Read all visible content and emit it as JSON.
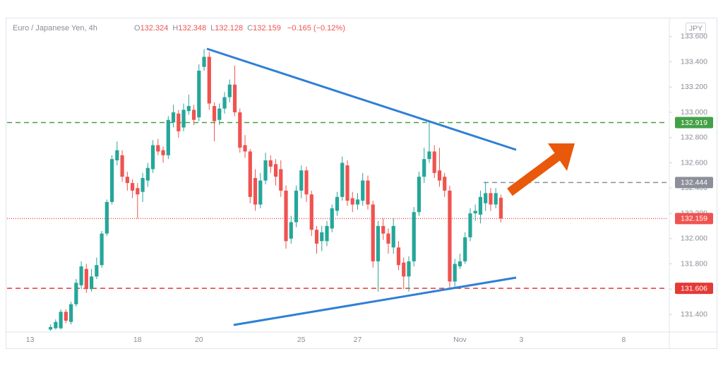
{
  "chart_data": {
    "type": "candlestick",
    "title": "Euro / Japanese Yen, 4h",
    "ohlc_labels": [
      "O",
      "H",
      "L",
      "C"
    ],
    "change": "−0.165 (−0.12%)",
    "currency": "JPY",
    "up_color": "#26a69a",
    "down_color": "#ef5350",
    "grid": false,
    "categories": [
      null,
      null,
      null,
      null,
      "13",
      null,
      null,
      null,
      null,
      null,
      null,
      null,
      null,
      null,
      null,
      null,
      null,
      null,
      null,
      null,
      null,
      null,
      null,
      null,
      null,
      "18",
      null,
      null,
      null,
      null,
      null,
      null,
      null,
      null,
      null,
      null,
      null,
      "20",
      null,
      null,
      null,
      null,
      null,
      null,
      null,
      null,
      null,
      null,
      null,
      null,
      null,
      null,
      null,
      null,
      null,
      null,
      null,
      "25",
      null,
      null,
      null,
      null,
      null,
      null,
      null,
      null,
      null,
      null,
      "27",
      null,
      null,
      null,
      null,
      null,
      null,
      null,
      null,
      null,
      null,
      null,
      null,
      null,
      null,
      null,
      null,
      null,
      null,
      null,
      "Nov",
      null,
      null,
      null,
      null,
      null,
      null,
      null,
      null,
      null,
      null,
      null,
      "3",
      null,
      null,
      null,
      null,
      null,
      null,
      null,
      null,
      null,
      null,
      null,
      null,
      null,
      null,
      null,
      null,
      null,
      null,
      null,
      "8",
      null,
      null,
      null,
      null,
      null,
      null,
      null,
      null
    ],
    "open": [
      null,
      null,
      null,
      null,
      null,
      null,
      null,
      null,
      131.28,
      131.29,
      131.29,
      131.42,
      131.34,
      131.48,
      131.63,
      131.76,
      131.6,
      131.7,
      131.79,
      132.04,
      132.29,
      132.62,
      132.66,
      132.49,
      132.44,
      132.4,
      132.37,
      132.46,
      132.55,
      132.74,
      132.7,
      132.66,
      132.92,
      132.99,
      132.88,
      133.01,
      133.02,
      132.96,
      133.36,
      133.44,
      133.05,
      132.94,
      133.03,
      133.12,
      133.22,
      133.0,
      132.74,
      132.69,
      132.48,
      132.27,
      132.46,
      132.62,
      132.59,
      132.55,
      132.38,
      132.0,
      132.13,
      132.38,
      132.54,
      132.35,
      132.07,
      131.98,
      131.98,
      132.08,
      132.22,
      132.33,
      132.58,
      132.32,
      132.27,
      132.3,
      132.46,
      132.27,
      131.82,
      132.1,
      132.04,
      131.93,
      131.93,
      131.81,
      131.7,
      131.82,
      132.21,
      132.49,
      132.63,
      132.69,
      132.54,
      132.49,
      132.38,
      131.66,
      131.78,
      131.82,
      132.01,
      132.2,
      132.19,
      132.28,
      132.36,
      132.27,
      132.324,
      null,
      null,
      null,
      null,
      null,
      null,
      null,
      null,
      null,
      null,
      null,
      null,
      null,
      null,
      null,
      null,
      null,
      null,
      null,
      null,
      null,
      null,
      null,
      null,
      null,
      null,
      null,
      null,
      null,
      null,
      null,
      null
    ],
    "high": [
      null,
      null,
      null,
      null,
      null,
      null,
      null,
      null,
      131.32,
      131.36,
      131.44,
      131.44,
      131.5,
      131.68,
      131.82,
      131.8,
      131.76,
      131.85,
      132.06,
      132.31,
      132.66,
      132.77,
      132.7,
      132.53,
      132.47,
      132.44,
      132.52,
      132.6,
      132.78,
      132.79,
      132.73,
      132.97,
      133.06,
      133.02,
      133.07,
      133.14,
      133.06,
      133.38,
      133.5,
      133.48,
      133.08,
      133.07,
      133.16,
      133.26,
      133.37,
      133.03,
      132.82,
      132.71,
      132.55,
      132.52,
      132.68,
      132.66,
      132.63,
      132.62,
      132.42,
      132.18,
      132.42,
      132.58,
      132.57,
      132.38,
      132.1,
      132.1,
      132.14,
      132.27,
      132.37,
      132.65,
      132.62,
      132.37,
      132.36,
      132.52,
      132.5,
      132.3,
      132.14,
      132.16,
      132.08,
      132.16,
      131.98,
      131.85,
      131.86,
      132.25,
      132.53,
      132.72,
      132.93,
      132.74,
      132.72,
      132.52,
      132.42,
      131.84,
      131.88,
      132.05,
      132.24,
      132.27,
      132.38,
      132.45,
      132.4,
      132.4,
      132.348,
      null,
      null,
      null,
      null,
      null,
      null,
      null,
      null,
      null,
      null,
      null,
      null,
      null,
      null,
      null,
      null,
      null,
      null,
      null,
      null,
      null,
      null,
      null,
      null,
      null,
      null,
      null,
      null,
      null,
      null,
      null,
      null
    ],
    "low": [
      null,
      null,
      null,
      null,
      null,
      null,
      null,
      null,
      131.27,
      131.28,
      131.28,
      131.33,
      131.32,
      131.46,
      131.6,
      131.57,
      131.58,
      131.68,
      131.77,
      132.02,
      132.27,
      132.58,
      132.45,
      132.38,
      132.32,
      132.16,
      132.29,
      132.41,
      132.52,
      132.66,
      132.6,
      132.63,
      132.88,
      132.8,
      132.85,
      132.98,
      132.9,
      132.93,
      133.33,
      133.02,
      132.77,
      132.9,
      132.99,
      133.08,
      132.97,
      132.68,
      132.64,
      132.28,
      132.22,
      132.24,
      132.43,
      132.52,
      132.42,
      132.33,
      131.92,
      131.96,
      132.09,
      132.32,
      132.29,
      132.02,
      131.88,
      131.9,
      131.94,
      132.05,
      132.18,
      132.3,
      132.26,
      132.21,
      132.23,
      132.26,
      132.23,
      131.77,
      131.58,
      131.99,
      131.88,
      131.88,
      131.75,
      131.6,
      131.58,
      131.78,
      132.18,
      132.44,
      132.6,
      132.48,
      132.41,
      132.33,
      131.61,
      131.62,
      131.76,
      131.8,
      131.98,
      132.14,
      132.12,
      132.22,
      132.22,
      132.24,
      132.128,
      null,
      null,
      null,
      null,
      null,
      null,
      null,
      null,
      null,
      null,
      null,
      null,
      null,
      null,
      null,
      null,
      null,
      null,
      null,
      null,
      null,
      null,
      null,
      null,
      null,
      null,
      null,
      null,
      null,
      null,
      null,
      null
    ],
    "close": [
      null,
      null,
      null,
      null,
      null,
      null,
      null,
      null,
      131.3,
      131.34,
      131.42,
      131.35,
      131.48,
      131.65,
      131.78,
      131.6,
      131.7,
      131.79,
      132.04,
      132.29,
      132.63,
      132.7,
      132.49,
      132.44,
      132.38,
      132.35,
      132.48,
      132.56,
      132.74,
      132.69,
      132.66,
      132.94,
      133.0,
      132.85,
      133.02,
      133.05,
      132.94,
      133.33,
      133.44,
      133.07,
      132.93,
      133.03,
      133.12,
      133.22,
      133.0,
      132.72,
      132.69,
      132.33,
      132.27,
      132.46,
      132.62,
      132.57,
      132.49,
      132.38,
      131.98,
      132.13,
      132.38,
      132.54,
      132.35,
      132.07,
      131.96,
      132.05,
      132.1,
      132.24,
      132.33,
      132.6,
      132.3,
      132.27,
      132.31,
      132.46,
      132.27,
      131.82,
      132.1,
      132.04,
      131.96,
      132.1,
      131.79,
      131.7,
      131.82,
      132.21,
      132.49,
      132.63,
      132.69,
      132.52,
      132.46,
      132.38,
      131.66,
      131.8,
      131.82,
      132.01,
      132.2,
      132.22,
      132.33,
      132.36,
      132.27,
      132.36,
      132.159,
      null,
      null,
      null,
      null,
      null,
      null,
      null,
      null,
      null,
      null,
      null,
      null,
      null,
      null,
      null,
      null,
      null,
      null,
      null,
      null,
      null,
      null,
      null,
      null,
      null,
      null,
      null,
      null,
      null,
      null,
      null,
      null
    ],
    "ylim": [
      131.26,
      133.75
    ],
    "yticks": [
      {
        "value": 131.4,
        "label": "131.400"
      },
      {
        "value": 131.6,
        "label": "131.600"
      },
      {
        "value": 131.8,
        "label": "131.800"
      },
      {
        "value": 132.0,
        "label": "132.000"
      },
      {
        "value": 132.2,
        "label": "132.200"
      },
      {
        "value": 132.4,
        "label": "132.400"
      },
      {
        "value": 132.6,
        "label": "132.600"
      },
      {
        "value": 132.8,
        "label": "132.800"
      },
      {
        "value": 133.0,
        "label": "133.000"
      },
      {
        "value": 133.2,
        "label": "133.200"
      },
      {
        "value": 133.4,
        "label": "133.400"
      },
      {
        "value": 133.6,
        "label": "133.600"
      }
    ],
    "price_lines": [
      {
        "value": 132.919,
        "color": "#43a047",
        "dash": "7 5"
      },
      {
        "value": 132.444,
        "color": "#8c8f99",
        "dash": "7 5"
      },
      {
        "value": 132.159,
        "color": "#ef5350",
        "dash": "1 2"
      },
      {
        "value": 131.606,
        "color": "#e53935",
        "dash": "7 5"
      }
    ]
  }
}
